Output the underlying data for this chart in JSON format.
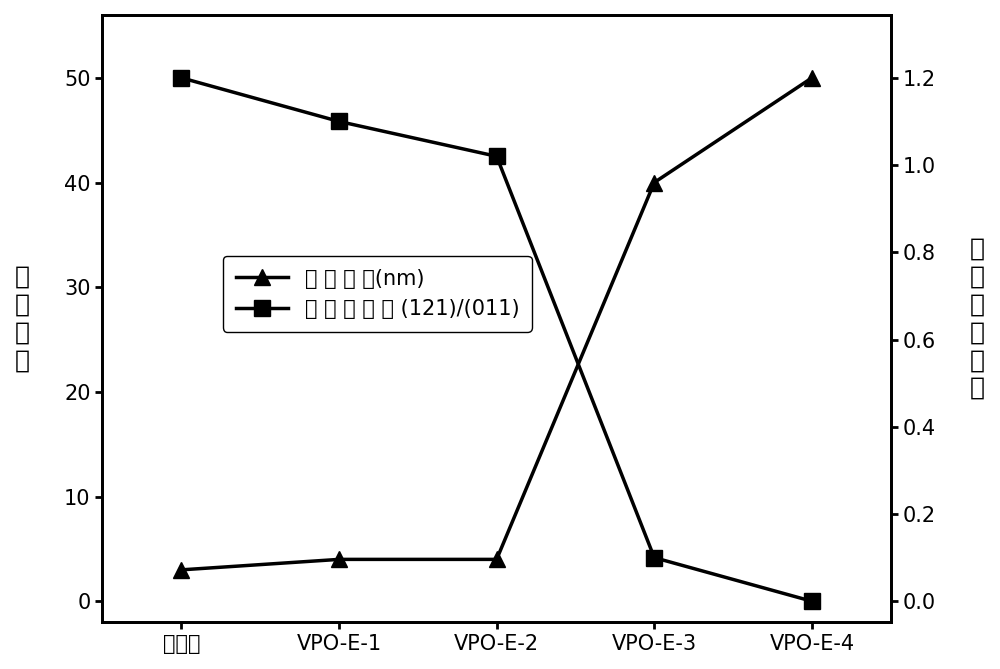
{
  "categories": [
    "对比样",
    "VPO-E-1",
    "VPO-E-2",
    "VPO-E-3",
    "VPO-E-4"
  ],
  "crystal_size": [
    3.0,
    4.0,
    4.0,
    40.0,
    50.0
  ],
  "intensity_ratio": [
    1.2,
    1.1,
    1.02,
    0.1,
    0.0
  ],
  "left_ylabel_chars": [
    "结",
    "晶",
    "尺",
    "寸"
  ],
  "right_ylabel_chars": [
    "値",
    "比",
    "度",
    "强",
    "面",
    "晶"
  ],
  "left_ylim": [
    -2,
    56
  ],
  "right_ylim": [
    -0.048,
    1.344
  ],
  "left_yticks": [
    0,
    10,
    20,
    30,
    40,
    50
  ],
  "right_yticks": [
    0.0,
    0.2,
    0.4,
    0.6,
    0.8,
    1.0,
    1.2
  ],
  "legend_triangle": "结 晶 尺 寸(nm)",
  "legend_square": "晶 面 强 度 比 (121)/(011)",
  "line_color": "#000000",
  "bg_color": "#ffffff",
  "marker_size": 11,
  "linewidth": 2.5,
  "font_size_label": 18,
  "font_size_tick": 15,
  "font_size_legend": 15
}
